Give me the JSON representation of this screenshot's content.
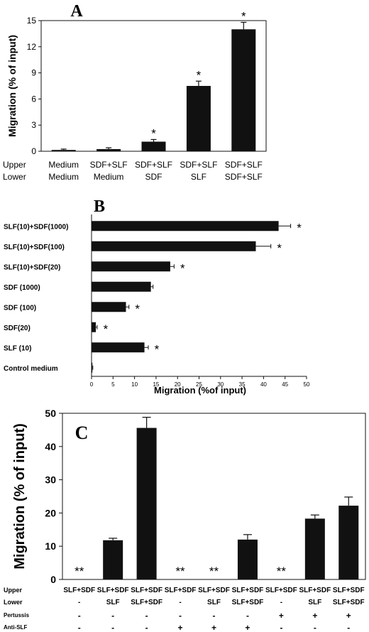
{
  "chart_data": [
    {
      "type": "bar",
      "panel": "A",
      "orientation": "vertical",
      "ylabel": "Migration (% of input)",
      "ylim": [
        0,
        15
      ],
      "yticks": [
        0,
        3,
        6,
        9,
        12,
        15
      ],
      "row_labels": [
        "Upper",
        "Lower"
      ],
      "categories": [
        {
          "upper": "Medium",
          "lower": "Medium"
        },
        {
          "upper": "SDF+SLF",
          "lower": "Medium"
        },
        {
          "upper": "SDF+SLF",
          "lower": "SDF"
        },
        {
          "upper": "SDF+SLF",
          "lower": "SLF"
        },
        {
          "upper": "SDF+SLF",
          "lower": "SDF+SLF"
        }
      ],
      "values": [
        0.15,
        0.25,
        1.1,
        7.5,
        14.0
      ],
      "errors": [
        0.1,
        0.15,
        0.25,
        0.55,
        0.8
      ],
      "annotations": [
        "",
        "",
        "*",
        "*",
        "*"
      ],
      "grid": false,
      "legend": "none"
    },
    {
      "type": "bar",
      "panel": "B",
      "orientation": "horizontal",
      "xlabel": "Migration (%of input)",
      "xlim": [
        0,
        50
      ],
      "xticks": [
        0,
        5,
        10,
        15,
        20,
        25,
        30,
        35,
        40,
        45,
        50
      ],
      "categories": [
        "SLF(10)+SDF(1000)",
        "SLF(10)+SDF(100)",
        "SLF(10)+SDF(20)",
        "SDF (1000)",
        "SDF (100)",
        "SDF(20)",
        "SLF (10)",
        "Control medium"
      ],
      "values": [
        43.5,
        38.2,
        18.3,
        13.8,
        8.0,
        1.0,
        12.3,
        0.2
      ],
      "errors": [
        2.8,
        3.5,
        0.9,
        0.5,
        0.7,
        0.3,
        0.9,
        0.1
      ],
      "annotations": [
        "*",
        "*",
        "*",
        "",
        "*",
        "*",
        "*",
        ""
      ],
      "grid": false,
      "legend": "none"
    },
    {
      "type": "bar",
      "panel": "C",
      "orientation": "vertical",
      "ylabel": "Migration (% of input)",
      "ylim": [
        0,
        50
      ],
      "yticks": [
        0,
        10,
        20,
        30,
        40,
        50
      ],
      "row_labels": [
        "Upper",
        "Lower",
        "Pertussis",
        "Anti-SLF"
      ],
      "categories": [
        {
          "upper": "SLF+SDF",
          "lower": "-",
          "pertussis": "-",
          "anti_slf": "-"
        },
        {
          "upper": "SLF+SDF",
          "lower": "SLF",
          "pertussis": "-",
          "anti_slf": "-"
        },
        {
          "upper": "SLF+SDF",
          "lower": "SLF+SDF",
          "pertussis": "-",
          "anti_slf": "-"
        },
        {
          "upper": "SLF+SDF",
          "lower": "-",
          "pertussis": "-",
          "anti_slf": "+"
        },
        {
          "upper": "SLF+SDF",
          "lower": "SLF",
          "pertussis": "-",
          "anti_slf": "+"
        },
        {
          "upper": "SLF+SDF",
          "lower": "SLF+SDF",
          "pertussis": "-",
          "anti_slf": "+"
        },
        {
          "upper": "SLF+SDF",
          "lower": "-",
          "pertussis": "+",
          "anti_slf": "-"
        },
        {
          "upper": "SLF+SDF",
          "lower": "SLF",
          "pertussis": "+",
          "anti_slf": "-"
        },
        {
          "upper": "SLF+SDF",
          "lower": "SLF+SDF",
          "pertussis": "+",
          "anti_slf": "-"
        }
      ],
      "values": [
        0,
        11.8,
        45.6,
        0,
        0,
        12.0,
        0,
        18.3,
        22.2
      ],
      "errors": [
        0,
        0.6,
        3.2,
        0,
        0,
        1.5,
        0,
        1.1,
        2.6
      ],
      "annotations": [
        "**",
        "",
        "",
        "**",
        "**",
        "",
        "**",
        "",
        ""
      ],
      "grid": false,
      "legend": "none"
    }
  ]
}
